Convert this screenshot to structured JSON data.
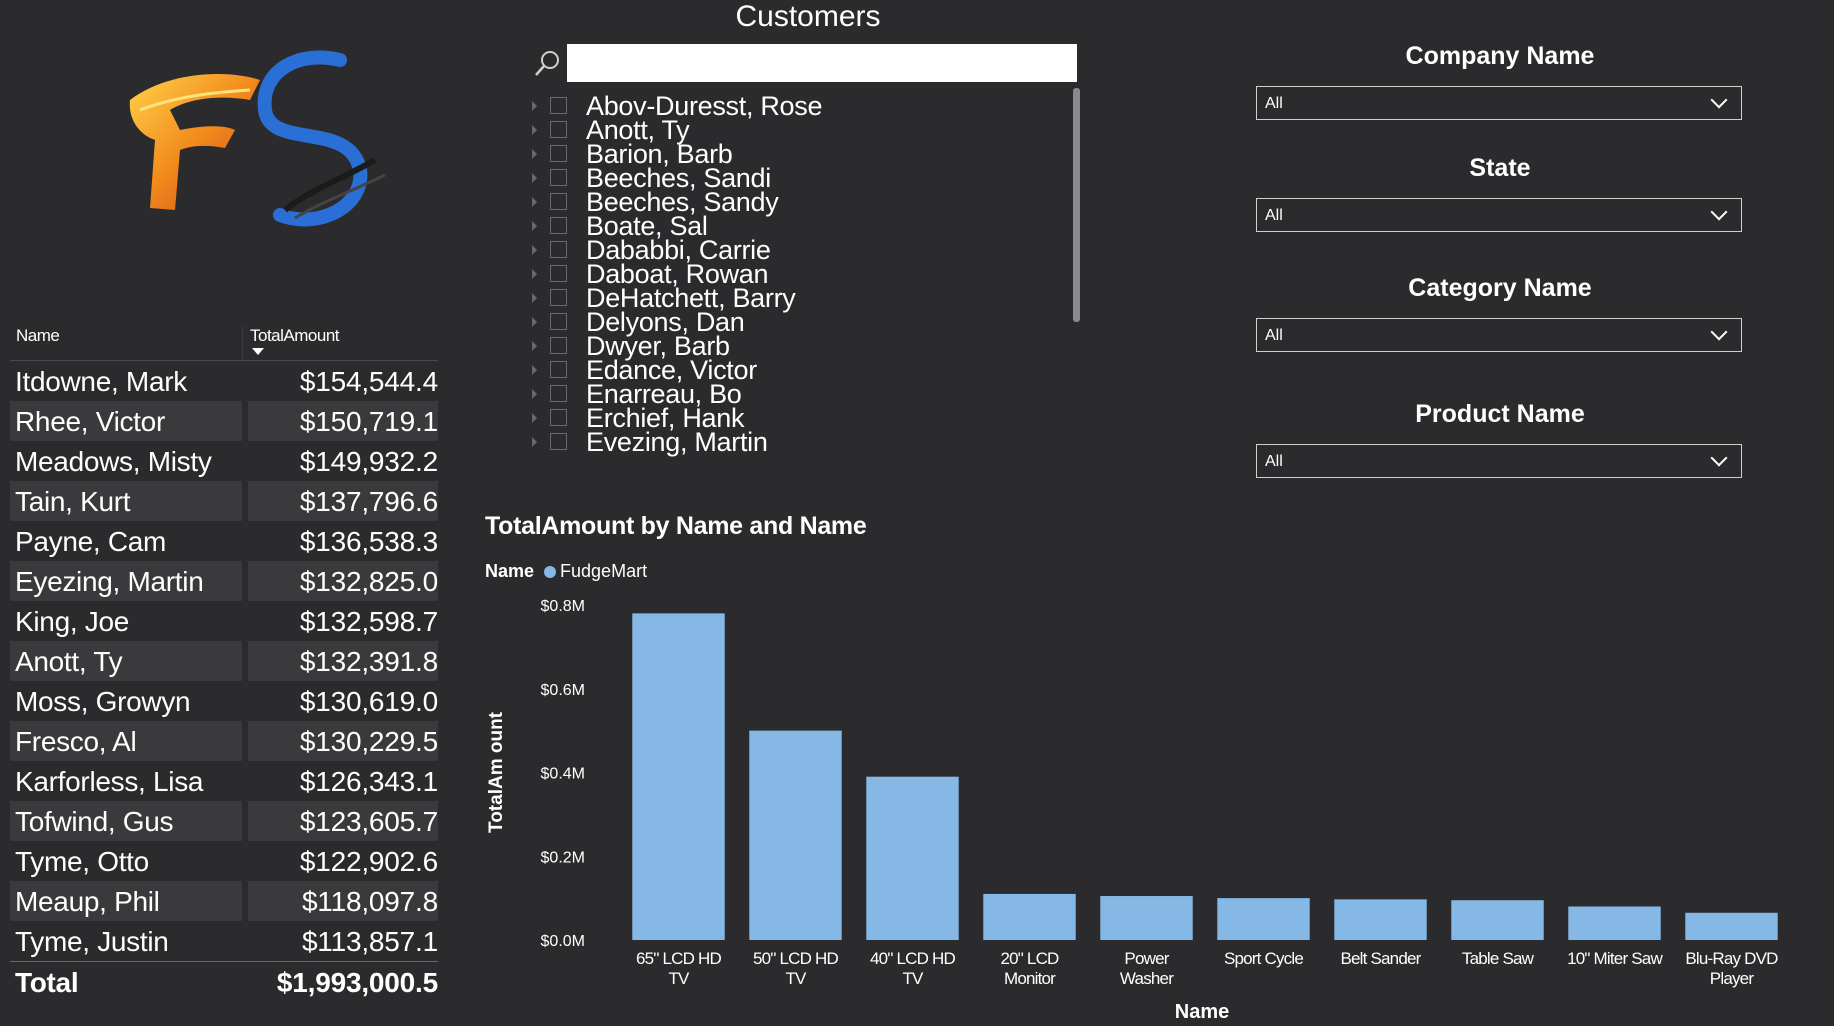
{
  "customers_slicer": {
    "title": "Customers",
    "search_value": "",
    "items": [
      "Abov-Duresst, Rose",
      "Anott, Ty",
      "Barion, Barb",
      "Beeches, Sandi",
      "Beeches, Sandy",
      "Boate, Sal",
      "Dababbi, Carrie",
      "Daboat, Rowan",
      "DeHatchett, Barry",
      "Delyons, Dan",
      "Dwyer, Barb",
      "Edance, Victor",
      "Enarreau, Bo",
      "Erchief, Hank",
      "Evezing, Martin"
    ]
  },
  "table": {
    "col_name": "Name",
    "col_amount": "TotalAmount",
    "rows": [
      {
        "name": "Itdowne, Mark",
        "amount": "$154,544.4"
      },
      {
        "name": "Rhee, Victor",
        "amount": "$150,719.1"
      },
      {
        "name": "Meadows, Misty",
        "amount": "$149,932.2"
      },
      {
        "name": "Tain, Kurt",
        "amount": "$137,796.6"
      },
      {
        "name": "Payne, Cam",
        "amount": "$136,538.3"
      },
      {
        "name": "Eyezing, Martin",
        "amount": "$132,825.0"
      },
      {
        "name": "King, Joe",
        "amount": "$132,598.7"
      },
      {
        "name": "Anott, Ty",
        "amount": "$132,391.8"
      },
      {
        "name": "Moss, Growyn",
        "amount": "$130,619.0"
      },
      {
        "name": "Fresco, Al",
        "amount": "$130,229.5"
      },
      {
        "name": "Karforless, Lisa",
        "amount": "$126,343.1"
      },
      {
        "name": "Tofwind, Gus",
        "amount": "$123,605.7"
      },
      {
        "name": "Tyme, Otto",
        "amount": "$122,902.6"
      },
      {
        "name": "Meaup, Phil",
        "amount": "$118,097.8"
      },
      {
        "name": "Tyme, Justin",
        "amount": "$113,857.1"
      }
    ],
    "total_label": "Total",
    "total_amount": "$1,993,000.5"
  },
  "slicers": [
    {
      "title": "Company Name",
      "value": "All"
    },
    {
      "title": "State",
      "value": "All"
    },
    {
      "title": "Category Name",
      "value": "All"
    },
    {
      "title": "Product Name",
      "value": "All"
    }
  ],
  "chart_data": {
    "type": "bar",
    "title": "TotalAmount by Name and Name",
    "legend_title": "Name",
    "legend_placement": "top-left",
    "series": [
      {
        "name": "FudgeMart",
        "color": "#86b8e6",
        "values": [
          0.78,
          0.5,
          0.39,
          0.11,
          0.105,
          0.1,
          0.097,
          0.095,
          0.08,
          0.065
        ]
      }
    ],
    "categories": [
      [
        "65\" LCD HD",
        "TV"
      ],
      [
        "50\" LCD HD",
        "TV"
      ],
      [
        "40\" LCD HD",
        "TV"
      ],
      [
        "20\" LCD",
        "Monitor"
      ],
      [
        "Power",
        "Washer"
      ],
      [
        "Sport Cycle"
      ],
      [
        "Belt Sander"
      ],
      [
        "Table Saw"
      ],
      [
        "10\" Miter Saw"
      ],
      [
        "Blu-Ray DVD",
        "Player"
      ]
    ],
    "xlabel": "Name",
    "ylabel": "TotalAm ount",
    "ylim": [
      0,
      0.8
    ],
    "yticks": [
      0,
      0.2,
      0.4,
      0.6,
      0.8
    ],
    "ytick_labels": [
      "$0.0M",
      "$0.2M",
      "$0.4M",
      "$0.6M",
      "$0.8M"
    ],
    "unit": "$M",
    "grid": false
  }
}
